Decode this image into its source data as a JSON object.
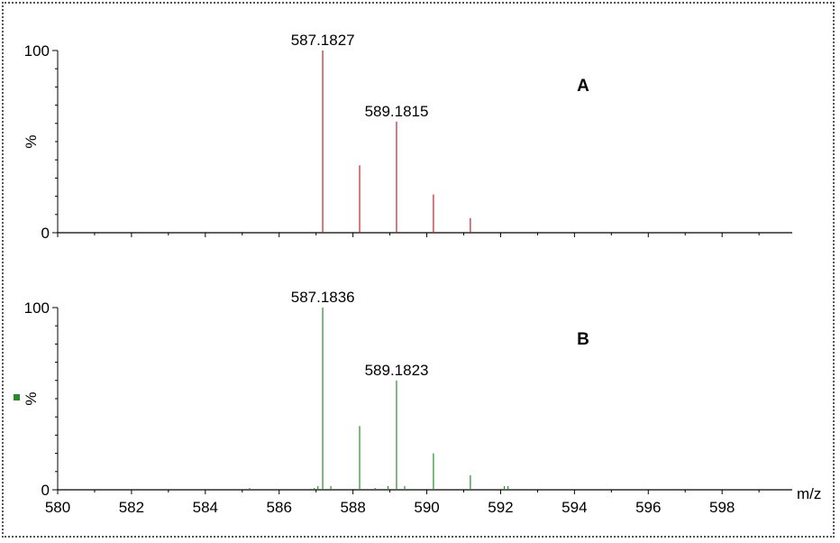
{
  "colors": {
    "A_peaks": "#c0202a",
    "B_peaks": "#2a8a2a",
    "axis": "#000000",
    "frame": "#555555"
  },
  "chart_data": [
    {
      "type": "bar",
      "panel_label": "A",
      "ylabel": "%",
      "xlim": [
        580,
        599.9
      ],
      "ylim": [
        0,
        100
      ],
      "yticks": [
        0,
        100
      ],
      "peak_labels": [
        {
          "x": 587.1827,
          "y": 100,
          "text": "587.1827"
        },
        {
          "x": 589.1815,
          "y": 61,
          "text": "589.1815"
        }
      ],
      "peaks": [
        {
          "x": 587.18,
          "y": 100
        },
        {
          "x": 588.18,
          "y": 37
        },
        {
          "x": 589.18,
          "y": 61
        },
        {
          "x": 590.18,
          "y": 21
        },
        {
          "x": 591.18,
          "y": 8
        }
      ]
    },
    {
      "type": "bar",
      "panel_label": "B",
      "ylabel": "%",
      "xlabel": "m/z",
      "xlim": [
        580,
        599.9
      ],
      "ylim": [
        0,
        100
      ],
      "yticks": [
        0,
        100
      ],
      "xticks": [
        580,
        582,
        584,
        586,
        588,
        590,
        592,
        594,
        596,
        598
      ],
      "peak_labels": [
        {
          "x": 587.1836,
          "y": 100,
          "text": "587.1836"
        },
        {
          "x": 589.1823,
          "y": 60,
          "text": "589.1823"
        }
      ],
      "peaks": [
        {
          "x": 585.2,
          "y": 1
        },
        {
          "x": 586.95,
          "y": 1
        },
        {
          "x": 587.05,
          "y": 2
        },
        {
          "x": 587.18,
          "y": 100
        },
        {
          "x": 587.4,
          "y": 2
        },
        {
          "x": 588.18,
          "y": 35
        },
        {
          "x": 588.6,
          "y": 1
        },
        {
          "x": 588.95,
          "y": 2
        },
        {
          "x": 589.18,
          "y": 60
        },
        {
          "x": 589.4,
          "y": 2
        },
        {
          "x": 590.18,
          "y": 20
        },
        {
          "x": 591.18,
          "y": 8
        },
        {
          "x": 592.1,
          "y": 2
        },
        {
          "x": 592.2,
          "y": 2
        }
      ]
    }
  ]
}
